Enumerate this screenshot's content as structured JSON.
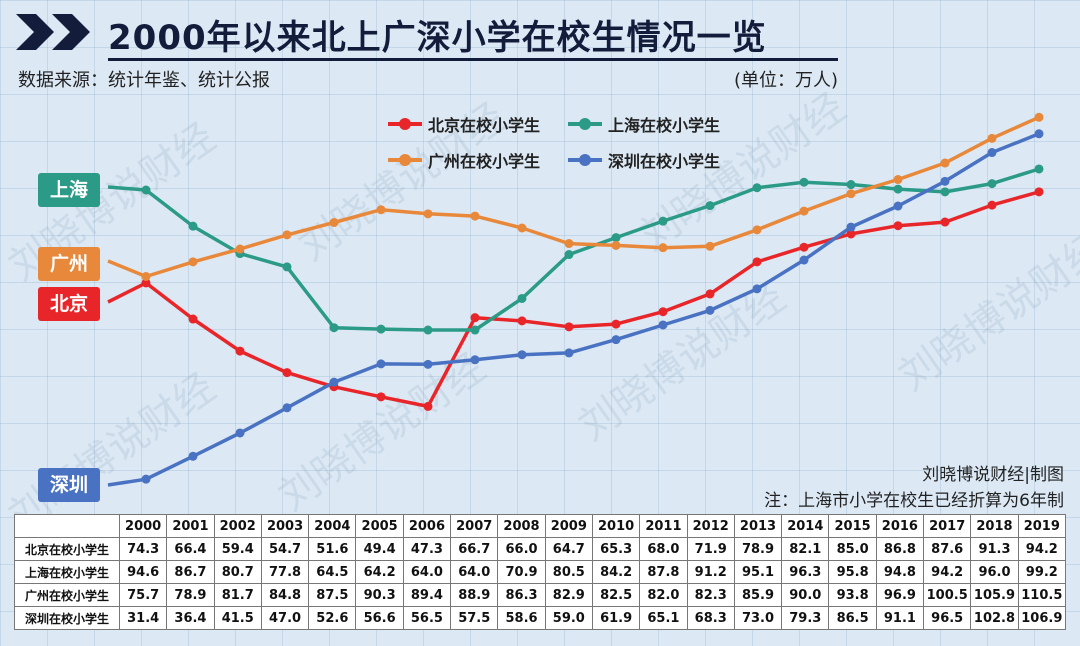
{
  "header": {
    "title": "2000年以来北上广深小学在校生情况一览",
    "source": "数据来源：统计年鉴、统计公报",
    "unit": "(单位：万人)"
  },
  "tags": {
    "shanghai": "上海",
    "guangzhou": "广州",
    "beijing": "北京",
    "shenzhen": "深圳"
  },
  "credit": "刘晓博说财经|制图",
  "note": "注：上海市小学在校生已经折算为6年制",
  "watermark": "刘晓博说财经",
  "colors": {
    "beijing": "#e8262a",
    "shanghai": "#2b9a86",
    "guangzhou": "#e8883a",
    "shenzhen": "#4a72c2",
    "title": "#141c3c"
  },
  "chart_data": {
    "type": "line",
    "x": [
      "2000",
      "2001",
      "2002",
      "2003",
      "2004",
      "2005",
      "2006",
      "2007",
      "2008",
      "2009",
      "2010",
      "2011",
      "2012",
      "2013",
      "2014",
      "2015",
      "2016",
      "2017",
      "2018",
      "2019"
    ],
    "series": [
      {
        "name": "北京在校小学生",
        "values": [
          74.3,
          66.4,
          59.4,
          54.7,
          51.6,
          49.4,
          47.3,
          66.7,
          66.0,
          64.7,
          65.3,
          68.0,
          71.9,
          78.9,
          82.1,
          85.0,
          86.8,
          87.6,
          91.3,
          94.2
        ]
      },
      {
        "name": "上海在校小学生",
        "values": [
          94.6,
          86.7,
          80.7,
          77.8,
          64.5,
          64.2,
          64.0,
          64.0,
          70.9,
          80.5,
          84.2,
          87.8,
          91.2,
          95.1,
          96.3,
          95.8,
          94.8,
          94.2,
          96.0,
          99.2
        ]
      },
      {
        "name": "广州在校小学生",
        "values": [
          75.7,
          78.9,
          81.7,
          84.8,
          87.5,
          90.3,
          89.4,
          88.9,
          86.3,
          82.9,
          82.5,
          82.0,
          82.3,
          85.9,
          90.0,
          93.8,
          96.9,
          100.5,
          105.9,
          110.5
        ]
      },
      {
        "name": "深圳在校小学生",
        "values": [
          31.4,
          36.4,
          41.5,
          47.0,
          52.6,
          56.6,
          56.5,
          57.5,
          58.6,
          59.0,
          61.9,
          65.1,
          68.3,
          73.0,
          79.3,
          86.5,
          91.1,
          96.5,
          102.8,
          106.9
        ]
      }
    ],
    "legend_position": "top-center"
  }
}
